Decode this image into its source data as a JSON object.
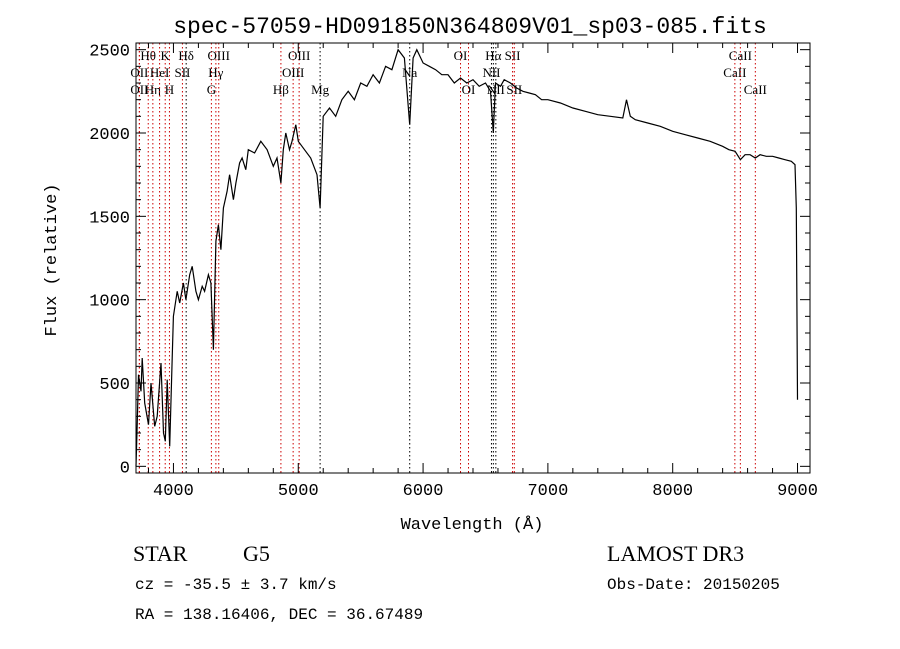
{
  "chart_data": {
    "type": "line",
    "title": "spec-57059-HD091850N364809V01_sp03-085.fits",
    "xlabel": "Wavelength (Å)",
    "ylabel": "Flux (relative)",
    "xlim": [
      3700,
      9100
    ],
    "ylim": [
      -40,
      2540
    ],
    "xticks": [
      4000,
      5000,
      6000,
      7000,
      8000,
      9000
    ],
    "yticks": [
      0,
      500,
      1000,
      1500,
      2000,
      2500
    ],
    "grid": false,
    "series": [
      {
        "name": "spectrum",
        "x": [
          3700,
          3710,
          3720,
          3740,
          3750,
          3770,
          3800,
          3820,
          3850,
          3870,
          3900,
          3920,
          3935,
          3950,
          3970,
          3990,
          4000,
          4030,
          4050,
          4080,
          4100,
          4130,
          4150,
          4180,
          4200,
          4230,
          4250,
          4280,
          4300,
          4320,
          4340,
          4360,
          4380,
          4400,
          4430,
          4450,
          4480,
          4500,
          4530,
          4550,
          4580,
          4600,
          4650,
          4700,
          4750,
          4800,
          4830,
          4861,
          4880,
          4900,
          4930,
          4950,
          4980,
          5000,
          5050,
          5100,
          5150,
          5175,
          5200,
          5250,
          5300,
          5350,
          5400,
          5450,
          5500,
          5550,
          5600,
          5650,
          5700,
          5750,
          5800,
          5850,
          5893,
          5920,
          5950,
          6000,
          6050,
          6100,
          6150,
          6200,
          6250,
          6300,
          6350,
          6400,
          6450,
          6500,
          6540,
          6563,
          6580,
          6620,
          6650,
          6700,
          6750,
          6800,
          6850,
          6900,
          6950,
          7000,
          7100,
          7200,
          7300,
          7400,
          7500,
          7600,
          7630,
          7660,
          7700,
          7800,
          7900,
          8000,
          8100,
          8200,
          8300,
          8400,
          8450,
          8500,
          8542,
          8580,
          8620,
          8662,
          8700,
          8750,
          8800,
          8850,
          8900,
          8950,
          8980,
          8990,
          9000
        ],
        "y": [
          0,
          250,
          550,
          450,
          650,
          380,
          250,
          500,
          240,
          300,
          620,
          200,
          150,
          520,
          120,
          650,
          900,
          1050,
          980,
          1100,
          1000,
          1150,
          1200,
          1050,
          1000,
          1080,
          1050,
          1150,
          1100,
          700,
          1350,
          1450,
          1300,
          1550,
          1650,
          1750,
          1600,
          1700,
          1820,
          1850,
          1780,
          1900,
          1880,
          1950,
          1900,
          1800,
          1850,
          1700,
          1900,
          2000,
          1900,
          1950,
          2050,
          1950,
          1900,
          1850,
          1750,
          1550,
          2100,
          2150,
          2100,
          2200,
          2250,
          2200,
          2300,
          2280,
          2350,
          2300,
          2400,
          2380,
          2500,
          2450,
          2050,
          2450,
          2500,
          2420,
          2400,
          2380,
          2350,
          2350,
          2300,
          2330,
          2300,
          2320,
          2280,
          2300,
          2250,
          2000,
          2300,
          2280,
          2320,
          2300,
          2270,
          2250,
          2240,
          2230,
          2200,
          2200,
          2180,
          2150,
          2130,
          2110,
          2100,
          2090,
          2200,
          2100,
          2080,
          2060,
          2040,
          2010,
          1990,
          1970,
          1950,
          1920,
          1900,
          1890,
          1840,
          1870,
          1870,
          1850,
          1870,
          1860,
          1860,
          1850,
          1840,
          1830,
          1810,
          1550,
          400
        ]
      }
    ],
    "line_markers": [
      {
        "label": "OII",
        "wave": 3727,
        "row": 1,
        "color": "#cc0000"
      },
      {
        "label": "OII",
        "wave": 3727,
        "row": 2,
        "color": "#cc0000"
      },
      {
        "label": "Hθ",
        "wave": 3798,
        "row": 0,
        "color": "#cc0000"
      },
      {
        "label": "Hη",
        "wave": 3835,
        "row": 2,
        "color": "#cc0000"
      },
      {
        "label": "HeI",
        "wave": 3889,
        "row": 1,
        "color": "#cc0000"
      },
      {
        "label": "K",
        "wave": 3934,
        "row": 0,
        "color": "#cc0000"
      },
      {
        "label": "H",
        "wave": 3968,
        "row": 2,
        "color": "#cc0000"
      },
      {
        "label": "SII",
        "wave": 4072,
        "row": 1,
        "color": "#cc0000"
      },
      {
        "label": "Hδ",
        "wave": 4102,
        "row": 0,
        "color": "#000000"
      },
      {
        "label": "G",
        "wave": 4304,
        "row": 2,
        "color": "#cc0000"
      },
      {
        "label": "Hγ",
        "wave": 4340,
        "row": 1,
        "color": "#cc0000"
      },
      {
        "label": "OIII",
        "wave": 4363,
        "row": 0,
        "color": "#cc0000"
      },
      {
        "label": "Hβ",
        "wave": 4861,
        "row": 2,
        "color": "#cc0000"
      },
      {
        "label": "OIII",
        "wave": 4959,
        "row": 1,
        "color": "#cc0000"
      },
      {
        "label": "OIII",
        "wave": 5007,
        "row": 0,
        "color": "#cc0000"
      },
      {
        "label": "Mg",
        "wave": 5175,
        "row": 2,
        "color": "#000000"
      },
      {
        "label": "Na",
        "wave": 5893,
        "row": 1,
        "color": "#000000"
      },
      {
        "label": "OI",
        "wave": 6300,
        "row": 0,
        "color": "#cc0000"
      },
      {
        "label": "OI",
        "wave": 6364,
        "row": 2,
        "color": "#cc0000"
      },
      {
        "label": "NII",
        "wave": 6548,
        "row": 1,
        "color": "#000000"
      },
      {
        "label": "Hα",
        "wave": 6563,
        "row": 0,
        "color": "#000000"
      },
      {
        "label": "NII",
        "wave": 6583,
        "row": 2,
        "color": "#000000"
      },
      {
        "label": "SII",
        "wave": 6717,
        "row": 0,
        "color": "#cc0000"
      },
      {
        "label": "SII",
        "wave": 6731,
        "row": 2,
        "color": "#cc0000"
      },
      {
        "label": "CaII",
        "wave": 8498,
        "row": 1,
        "color": "#cc0000"
      },
      {
        "label": "CaII",
        "wave": 8542,
        "row": 0,
        "color": "#cc0000"
      },
      {
        "label": "CaII",
        "wave": 8662,
        "row": 2,
        "color": "#cc0000"
      }
    ]
  },
  "info": {
    "class": "STAR",
    "subclass": "G5",
    "survey": "LAMOST DR3",
    "cz": "cz = -35.5 ± 3.7 km/s",
    "obs_date": "Obs-Date: 20150205",
    "coords": "RA = 138.16406, DEC =  36.67489"
  }
}
